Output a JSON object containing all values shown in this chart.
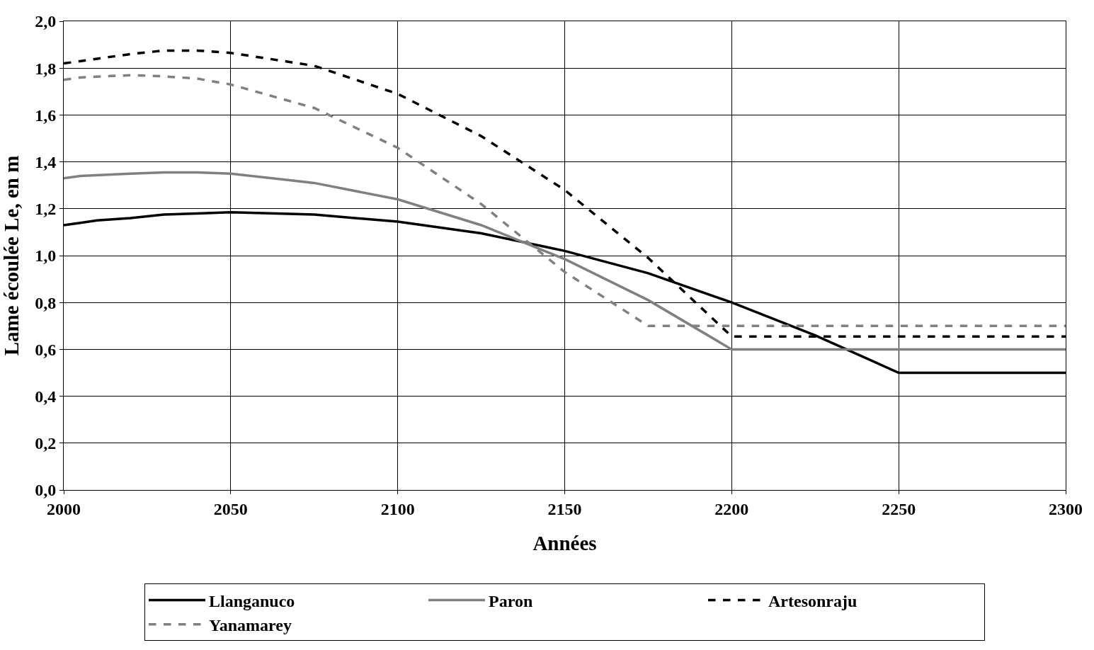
{
  "chart_data": {
    "type": "line",
    "xlabel": "Années",
    "ylabel": "Lame écoulée Le, en m",
    "xlim": [
      2000,
      2300
    ],
    "xticks": [
      2000,
      2050,
      2100,
      2150,
      2200,
      2250,
      2300
    ],
    "ylim": [
      0,
      2
    ],
    "yticks": [
      {
        "value": 0,
        "label": "0,0"
      },
      {
        "value": 0.2,
        "label": "0,2"
      },
      {
        "value": 0.4,
        "label": "0,4"
      },
      {
        "value": 0.6,
        "label": "0,6"
      },
      {
        "value": 0.8,
        "label": "0,8"
      },
      {
        "value": 1,
        "label": "1,0"
      },
      {
        "value": 1.2,
        "label": "1,2"
      },
      {
        "value": 1.4,
        "label": "1,4"
      },
      {
        "value": 1.6,
        "label": "1,6"
      },
      {
        "value": 1.8,
        "label": "1,8"
      },
      {
        "value": 2,
        "label": "2,0"
      }
    ],
    "grid": true,
    "legend": "bottom",
    "marker": "none",
    "series": [
      {
        "name": "Llanganuco",
        "color": "#000000",
        "line_style": "solid",
        "x": [
          2000,
          2005,
          2010,
          2020,
          2030,
          2040,
          2050,
          2075,
          2100,
          2125,
          2150,
          2175,
          2200,
          2225,
          2250,
          2300
        ],
        "values": [
          1.13,
          1.14,
          1.15,
          1.16,
          1.175,
          1.18,
          1.185,
          1.175,
          1.145,
          1.095,
          1.02,
          0.925,
          0.8,
          0.66,
          0.5,
          0.5
        ]
      },
      {
        "name": "Paron",
        "color": "#808080",
        "line_style": "solid",
        "x": [
          2000,
          2005,
          2020,
          2030,
          2040,
          2050,
          2075,
          2100,
          2125,
          2150,
          2175,
          2200,
          2300
        ],
        "values": [
          1.33,
          1.34,
          1.35,
          1.355,
          1.355,
          1.35,
          1.31,
          1.24,
          1.13,
          0.985,
          0.81,
          0.6,
          0.6
        ]
      },
      {
        "name": "Artesonraju",
        "color": "#000000",
        "line_style": "dashed",
        "x": [
          2000,
          2010,
          2020,
          2030,
          2040,
          2050,
          2075,
          2100,
          2125,
          2150,
          2175,
          2200,
          2300
        ],
        "values": [
          1.82,
          1.84,
          1.86,
          1.875,
          1.875,
          1.865,
          1.81,
          1.69,
          1.51,
          1.28,
          0.99,
          0.655,
          0.655
        ]
      },
      {
        "name": "Yanamarey",
        "color": "#808080",
        "line_style": "dashed",
        "x": [
          2000,
          2005,
          2020,
          2030,
          2040,
          2050,
          2075,
          2100,
          2125,
          2150,
          2175,
          2300
        ],
        "values": [
          1.75,
          1.76,
          1.77,
          1.765,
          1.755,
          1.73,
          1.63,
          1.46,
          1.22,
          0.93,
          0.7,
          0.7
        ]
      }
    ]
  }
}
